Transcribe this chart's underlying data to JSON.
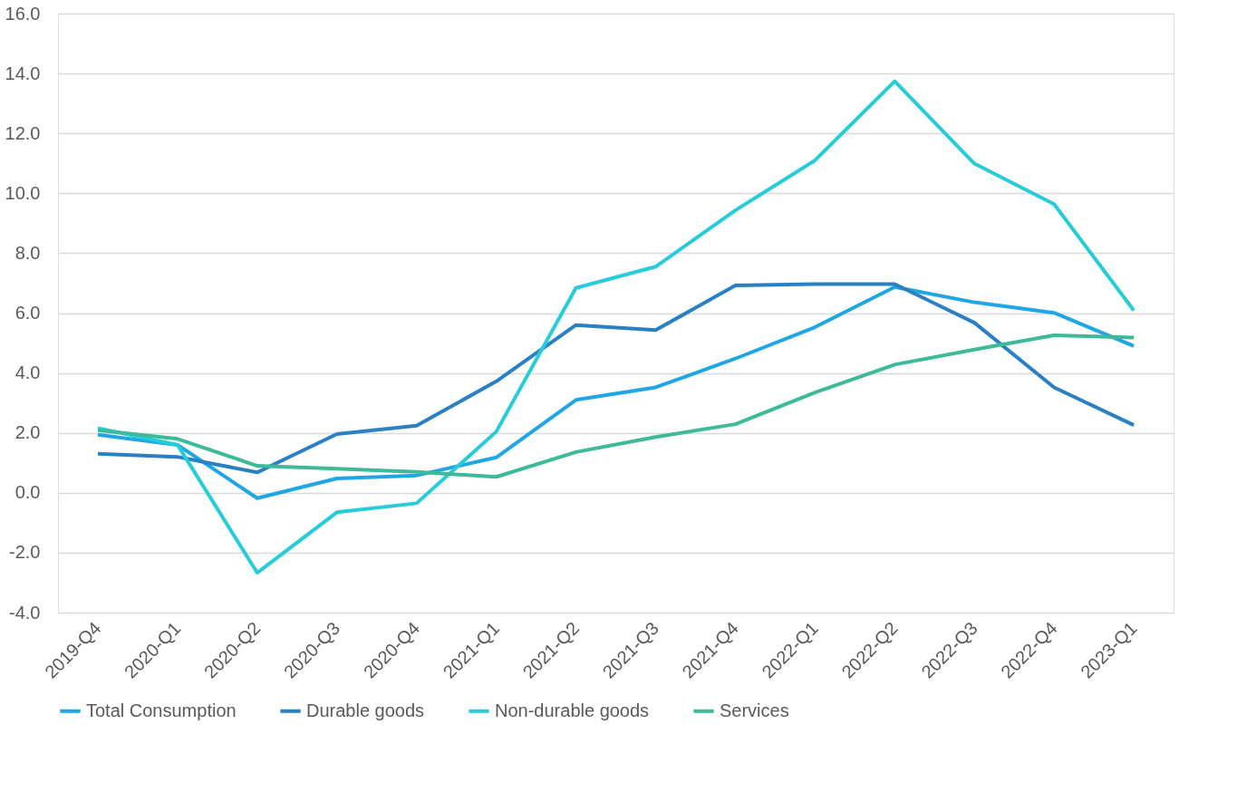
{
  "chart_data": {
    "type": "line",
    "categories": [
      "2019-Q4",
      "2020-Q1",
      "2020-Q2",
      "2020-Q3",
      "2020-Q4",
      "2021-Q1",
      "2021-Q2",
      "2021-Q3",
      "2021-Q4",
      "2022-Q1",
      "2022-Q2",
      "2022-Q3",
      "2022-Q4",
      "2023-Q1"
    ],
    "series": [
      {
        "name": "Total Consumption",
        "color": "#1ea7e4",
        "values": [
          1.94,
          1.6,
          -0.18,
          0.48,
          0.58,
          1.18,
          3.1,
          3.52,
          4.48,
          5.53,
          6.87,
          6.36,
          6.01,
          4.9
        ]
      },
      {
        "name": "Durable goods",
        "color": "#2a80c4",
        "values": [
          1.3,
          1.2,
          0.68,
          1.96,
          2.24,
          3.72,
          5.6,
          5.43,
          6.92,
          6.97,
          6.97,
          5.68,
          3.52,
          2.26
        ]
      },
      {
        "name": "Non-durable goods",
        "color": "#26ccd9",
        "values": [
          2.16,
          1.6,
          -2.67,
          -0.65,
          -0.35,
          2.04,
          6.84,
          7.55,
          9.43,
          11.1,
          13.74,
          10.99,
          9.64,
          6.09
        ]
      },
      {
        "name": "Services",
        "color": "#3dba98",
        "values": [
          2.09,
          1.8,
          0.9,
          0.8,
          0.7,
          0.53,
          1.36,
          1.86,
          2.29,
          3.35,
          4.28,
          4.78,
          5.26,
          5.18
        ]
      }
    ],
    "ylim": [
      -4,
      16
    ],
    "yticks": [
      {
        "value": -4,
        "label": "-4.0"
      },
      {
        "value": -2,
        "label": "-2.0"
      },
      {
        "value": 0,
        "label": "0.0"
      },
      {
        "value": 2,
        "label": "2.0"
      },
      {
        "value": 4,
        "label": "4.0"
      },
      {
        "value": 6,
        "label": "6.0"
      },
      {
        "value": 8,
        "label": "8.0"
      },
      {
        "value": 10,
        "label": "10.0"
      },
      {
        "value": 12,
        "label": "12.0"
      },
      {
        "value": 14,
        "label": "14.0"
      },
      {
        "value": 16,
        "label": "16.0"
      }
    ],
    "grid": "y",
    "legend": "bottom",
    "marker": "none",
    "line_style": "solid"
  }
}
